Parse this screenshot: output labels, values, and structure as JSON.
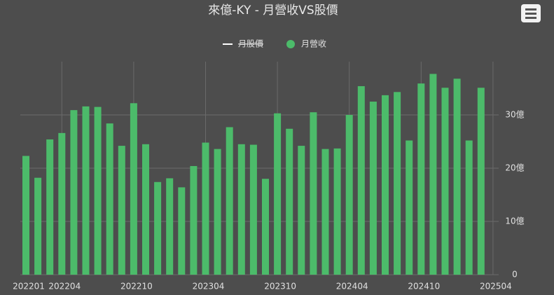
{
  "chart_data": {
    "type": "bar",
    "title": "來億-KY - 月營收VS股價",
    "categories": [
      "202201",
      null,
      null,
      "202204",
      null,
      null,
      null,
      null,
      null,
      "202210",
      null,
      null,
      null,
      null,
      null,
      "202304",
      null,
      null,
      null,
      null,
      null,
      "202310",
      null,
      null,
      null,
      null,
      null,
      "202404",
      null,
      null,
      null,
      null,
      null,
      "202410",
      null,
      null,
      null,
      null,
      null,
      "202504"
    ],
    "series": [
      {
        "name": "月股價",
        "color": "#ffffff",
        "hidden": true,
        "values": [
          null,
          null,
          null,
          null,
          null,
          null,
          null,
          null,
          null,
          null,
          null,
          null,
          null,
          null,
          null,
          null,
          null,
          null,
          null,
          null,
          null,
          null,
          null,
          null,
          null,
          null,
          null,
          null,
          null,
          null,
          null,
          null,
          null,
          null,
          null,
          null,
          null,
          null,
          null,
          null
        ]
      },
      {
        "name": "月營收",
        "color": "#4cbb6a",
        "values": [
          22.3,
          18.2,
          25.4,
          26.6,
          30.9,
          31.6,
          31.5,
          28.4,
          24.2,
          32.2,
          24.5,
          17.4,
          18.1,
          16.4,
          20.4,
          24.8,
          23.6,
          27.7,
          24.5,
          24.4,
          18.0,
          30.3,
          27.4,
          24.2,
          30.5,
          23.6,
          23.7,
          30.0,
          35.4,
          32.5,
          33.7,
          34.3,
          25.2,
          35.9,
          37.7,
          35.1,
          36.8,
          25.2,
          35.1,
          null
        ]
      }
    ],
    "ylim": [
      0,
      40
    ],
    "yticks": [
      0,
      {
        "value": 10,
        "label": "10億"
      },
      {
        "value": 20,
        "label": "20億"
      },
      {
        "value": 30,
        "label": "30億"
      }
    ],
    "grid": true
  }
}
